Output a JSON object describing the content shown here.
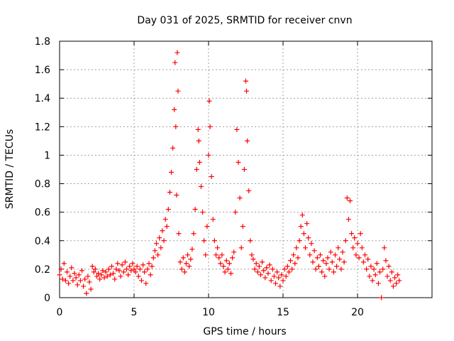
{
  "chart_data": {
    "type": "scatter",
    "title": "Day 031 of 2025, SRMTID for receiver cnvn",
    "xlabel": "GPS time / hours",
    "ylabel": "SRMTID / TECUs",
    "xlim": [
      0,
      25
    ],
    "ylim": [
      0,
      1.8
    ],
    "grid": true,
    "marker": "plus",
    "color": "#ff0000",
    "xticks": [
      0,
      5,
      10,
      15,
      20
    ],
    "xtick_labels": [
      "0",
      "5",
      "10",
      "15",
      "20"
    ],
    "yticks": [
      0,
      0.2,
      0.4,
      0.6,
      0.8,
      1.0,
      1.2,
      1.4,
      1.6,
      1.8
    ],
    "ytick_labels": [
      "0",
      "0.2",
      "0.4",
      "0.6",
      "0.8",
      "1",
      "1.2",
      "1.4",
      "1.6",
      "1.8"
    ],
    "series": [
      {
        "name": "SRMTID",
        "points": [
          [
            0.0,
            0.16
          ],
          [
            0.1,
            0.2
          ],
          [
            0.2,
            0.13
          ],
          [
            0.3,
            0.24
          ],
          [
            0.4,
            0.12
          ],
          [
            0.5,
            0.18
          ],
          [
            0.6,
            0.1
          ],
          [
            0.7,
            0.15
          ],
          [
            0.8,
            0.21
          ],
          [
            0.9,
            0.12
          ],
          [
            1.0,
            0.17
          ],
          [
            1.1,
            0.14
          ],
          [
            1.2,
            0.09
          ],
          [
            1.3,
            0.16
          ],
          [
            1.4,
            0.12
          ],
          [
            1.5,
            0.19
          ],
          [
            1.6,
            0.08
          ],
          [
            1.7,
            0.13
          ],
          [
            1.8,
            0.03
          ],
          [
            1.9,
            0.15
          ],
          [
            2.0,
            0.11
          ],
          [
            2.1,
            0.06
          ],
          [
            2.2,
            0.22
          ],
          [
            2.3,
            0.18
          ],
          [
            2.4,
            0.2
          ],
          [
            2.5,
            0.15
          ],
          [
            2.6,
            0.17
          ],
          [
            2.7,
            0.13
          ],
          [
            2.8,
            0.16
          ],
          [
            2.9,
            0.19
          ],
          [
            3.0,
            0.14
          ],
          [
            3.1,
            0.18
          ],
          [
            3.2,
            0.15
          ],
          [
            3.3,
            0.2
          ],
          [
            3.4,
            0.16
          ],
          [
            3.5,
            0.22
          ],
          [
            3.6,
            0.17
          ],
          [
            3.7,
            0.13
          ],
          [
            3.8,
            0.2
          ],
          [
            3.9,
            0.24
          ],
          [
            4.0,
            0.19
          ],
          [
            4.1,
            0.15
          ],
          [
            4.2,
            0.23
          ],
          [
            4.3,
            0.18
          ],
          [
            4.4,
            0.25
          ],
          [
            4.5,
            0.2
          ],
          [
            4.6,
            0.16
          ],
          [
            4.7,
            0.22
          ],
          [
            4.8,
            0.19
          ],
          [
            4.9,
            0.24
          ],
          [
            5.0,
            0.2
          ],
          [
            5.1,
            0.18
          ],
          [
            5.2,
            0.22
          ],
          [
            5.3,
            0.15
          ],
          [
            5.4,
            0.2
          ],
          [
            5.5,
            0.12
          ],
          [
            5.6,
            0.23
          ],
          [
            5.7,
            0.18
          ],
          [
            5.8,
            0.1
          ],
          [
            5.9,
            0.2
          ],
          [
            6.0,
            0.24
          ],
          [
            6.1,
            0.16
          ],
          [
            6.2,
            0.22
          ],
          [
            6.3,
            0.28
          ],
          [
            6.4,
            0.33
          ],
          [
            6.5,
            0.38
          ],
          [
            6.6,
            0.3
          ],
          [
            6.7,
            0.42
          ],
          [
            6.8,
            0.35
          ],
          [
            6.9,
            0.47
          ],
          [
            7.0,
            0.4
          ],
          [
            7.1,
            0.55
          ],
          [
            7.2,
            0.5
          ],
          [
            7.3,
            0.62
          ],
          [
            7.4,
            0.74
          ],
          [
            7.5,
            0.88
          ],
          [
            7.6,
            1.05
          ],
          [
            7.7,
            1.32
          ],
          [
            7.75,
            1.65
          ],
          [
            7.8,
            1.2
          ],
          [
            7.85,
            0.72
          ],
          [
            7.9,
            1.72
          ],
          [
            7.95,
            1.45
          ],
          [
            8.0,
            0.45
          ],
          [
            8.1,
            0.25
          ],
          [
            8.2,
            0.2
          ],
          [
            8.3,
            0.28
          ],
          [
            8.4,
            0.18
          ],
          [
            8.5,
            0.24
          ],
          [
            8.6,
            0.3
          ],
          [
            8.7,
            0.22
          ],
          [
            8.8,
            0.27
          ],
          [
            8.9,
            0.34
          ],
          [
            9.0,
            0.45
          ],
          [
            9.1,
            0.62
          ],
          [
            9.2,
            0.9
          ],
          [
            9.3,
            1.18
          ],
          [
            9.35,
            1.1
          ],
          [
            9.4,
            0.95
          ],
          [
            9.5,
            0.78
          ],
          [
            9.6,
            0.6
          ],
          [
            9.7,
            0.4
          ],
          [
            9.8,
            0.3
          ],
          [
            9.9,
            0.5
          ],
          [
            10.0,
            1.0
          ],
          [
            10.05,
            1.38
          ],
          [
            10.1,
            1.2
          ],
          [
            10.2,
            0.85
          ],
          [
            10.3,
            0.55
          ],
          [
            10.4,
            0.4
          ],
          [
            10.5,
            0.3
          ],
          [
            10.6,
            0.35
          ],
          [
            10.7,
            0.28
          ],
          [
            10.8,
            0.24
          ],
          [
            10.9,
            0.3
          ],
          [
            11.0,
            0.22
          ],
          [
            11.1,
            0.18
          ],
          [
            11.2,
            0.26
          ],
          [
            11.3,
            0.2
          ],
          [
            11.4,
            0.24
          ],
          [
            11.5,
            0.17
          ],
          [
            11.6,
            0.28
          ],
          [
            11.7,
            0.32
          ],
          [
            11.8,
            0.6
          ],
          [
            11.9,
            1.18
          ],
          [
            12.0,
            0.95
          ],
          [
            12.1,
            0.7
          ],
          [
            12.2,
            0.35
          ],
          [
            12.3,
            0.5
          ],
          [
            12.4,
            0.9
          ],
          [
            12.5,
            1.52
          ],
          [
            12.55,
            1.45
          ],
          [
            12.6,
            1.1
          ],
          [
            12.7,
            0.75
          ],
          [
            12.8,
            0.4
          ],
          [
            12.9,
            0.3
          ],
          [
            13.0,
            0.27
          ],
          [
            13.1,
            0.2
          ],
          [
            13.2,
            0.24
          ],
          [
            13.3,
            0.18
          ],
          [
            13.4,
            0.22
          ],
          [
            13.5,
            0.16
          ],
          [
            13.6,
            0.25
          ],
          [
            13.7,
            0.19
          ],
          [
            13.8,
            0.14
          ],
          [
            13.9,
            0.21
          ],
          [
            14.0,
            0.17
          ],
          [
            14.1,
            0.23
          ],
          [
            14.2,
            0.12
          ],
          [
            14.3,
            0.2
          ],
          [
            14.4,
            0.15
          ],
          [
            14.5,
            0.1
          ],
          [
            14.6,
            0.18
          ],
          [
            14.7,
            0.14
          ],
          [
            14.8,
            0.08
          ],
          [
            14.9,
            0.16
          ],
          [
            15.0,
            0.12
          ],
          [
            15.1,
            0.2
          ],
          [
            15.2,
            0.15
          ],
          [
            15.3,
            0.22
          ],
          [
            15.4,
            0.18
          ],
          [
            15.5,
            0.26
          ],
          [
            15.6,
            0.2
          ],
          [
            15.7,
            0.3
          ],
          [
            15.8,
            0.24
          ],
          [
            15.9,
            0.35
          ],
          [
            16.0,
            0.28
          ],
          [
            16.1,
            0.4
          ],
          [
            16.2,
            0.5
          ],
          [
            16.3,
            0.58
          ],
          [
            16.4,
            0.45
          ],
          [
            16.5,
            0.35
          ],
          [
            16.6,
            0.52
          ],
          [
            16.7,
            0.42
          ],
          [
            16.8,
            0.3
          ],
          [
            16.9,
            0.38
          ],
          [
            17.0,
            0.25
          ],
          [
            17.1,
            0.33
          ],
          [
            17.2,
            0.2
          ],
          [
            17.3,
            0.28
          ],
          [
            17.4,
            0.22
          ],
          [
            17.5,
            0.3
          ],
          [
            17.6,
            0.18
          ],
          [
            17.7,
            0.26
          ],
          [
            17.8,
            0.15
          ],
          [
            17.9,
            0.24
          ],
          [
            18.0,
            0.28
          ],
          [
            18.1,
            0.2
          ],
          [
            18.2,
            0.32
          ],
          [
            18.3,
            0.25
          ],
          [
            18.4,
            0.18
          ],
          [
            18.5,
            0.3
          ],
          [
            18.6,
            0.22
          ],
          [
            18.7,
            0.35
          ],
          [
            18.8,
            0.27
          ],
          [
            18.9,
            0.2
          ],
          [
            19.0,
            0.32
          ],
          [
            19.1,
            0.25
          ],
          [
            19.2,
            0.4
          ],
          [
            19.3,
            0.7
          ],
          [
            19.4,
            0.55
          ],
          [
            19.5,
            0.68
          ],
          [
            19.6,
            0.45
          ],
          [
            19.7,
            0.35
          ],
          [
            19.8,
            0.42
          ],
          [
            19.9,
            0.3
          ],
          [
            20.0,
            0.38
          ],
          [
            20.1,
            0.28
          ],
          [
            20.2,
            0.45
          ],
          [
            20.3,
            0.35
          ],
          [
            20.4,
            0.25
          ],
          [
            20.5,
            0.3
          ],
          [
            20.6,
            0.2
          ],
          [
            20.7,
            0.27
          ],
          [
            20.8,
            0.15
          ],
          [
            20.9,
            0.22
          ],
          [
            21.0,
            0.12
          ],
          [
            21.1,
            0.2
          ],
          [
            21.2,
            0.16
          ],
          [
            21.3,
            0.24
          ],
          [
            21.4,
            0.1
          ],
          [
            21.5,
            0.18
          ],
          [
            21.6,
            0.0
          ],
          [
            21.7,
            0.2
          ],
          [
            21.8,
            0.35
          ],
          [
            21.9,
            0.26
          ],
          [
            22.0,
            0.15
          ],
          [
            22.1,
            0.22
          ],
          [
            22.2,
            0.12
          ],
          [
            22.3,
            0.18
          ],
          [
            22.4,
            0.08
          ],
          [
            22.5,
            0.14
          ],
          [
            22.6,
            0.1
          ],
          [
            22.7,
            0.16
          ],
          [
            22.8,
            0.12
          ]
        ]
      }
    ]
  }
}
